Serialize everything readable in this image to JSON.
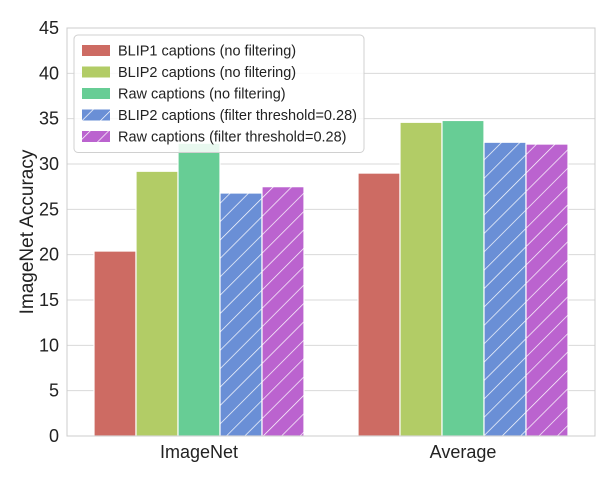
{
  "chart_data": {
    "type": "bar",
    "title": "",
    "xlabel": "",
    "ylabel": "ImageNet Accuracy",
    "ylim": [
      0,
      45
    ],
    "yticks": [
      0,
      5,
      10,
      15,
      20,
      25,
      30,
      35,
      40,
      45
    ],
    "grid": true,
    "legend_position": "top-left",
    "categories": [
      "ImageNet",
      "Average"
    ],
    "series": [
      {
        "name": "BLIP1 captions (no filtering)",
        "values": [
          20.4,
          29.0
        ],
        "color": "#cd6b63",
        "hatch": false
      },
      {
        "name": "BLIP2 captions (no filtering)",
        "values": [
          29.2,
          34.6
        ],
        "color": "#b2cc66",
        "hatch": false
      },
      {
        "name": "Raw captions (no filtering)",
        "values": [
          32.3,
          34.8
        ],
        "color": "#67cd95",
        "hatch": false
      },
      {
        "name": "BLIP2 captions (filter threshold=0.28)",
        "values": [
          26.8,
          32.4
        ],
        "color": "#6a8fd6",
        "hatch": true
      },
      {
        "name": "Raw captions (filter threshold=0.28)",
        "values": [
          27.5,
          32.2
        ],
        "color": "#bb63cf",
        "hatch": true
      }
    ]
  }
}
